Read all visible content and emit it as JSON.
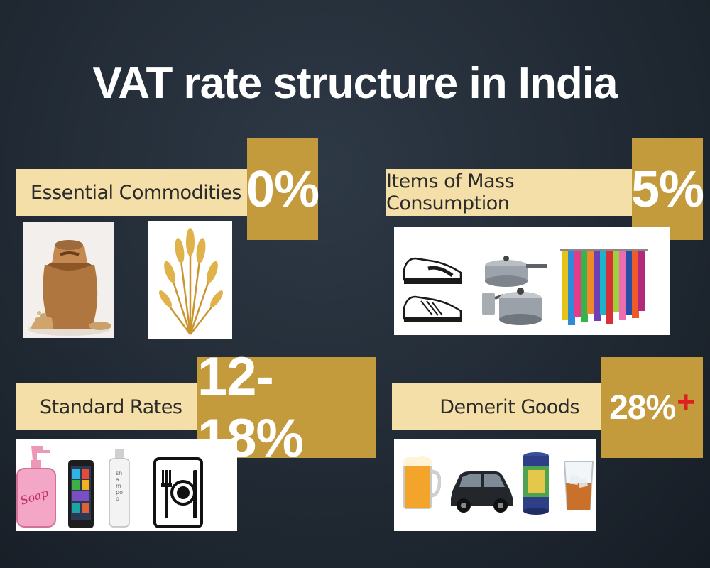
{
  "title": "VAT rate structure in India",
  "categories": [
    {
      "label": "Essential Commodities",
      "rate": "0%"
    },
    {
      "label": "Items of Mass Consumption",
      "rate": "5%"
    },
    {
      "label": "Standard Rates",
      "rate": "12-18%"
    },
    {
      "label": "Demerit Goods",
      "rate": "28%",
      "rate_suffix": "+"
    }
  ],
  "soap_text": "Soap",
  "shampoo_text": "shampoo",
  "colors": {
    "background": "#212a34",
    "label_bar": "#f4dfa8",
    "rate_box": "#c39a3c",
    "plus": "#e02020"
  }
}
